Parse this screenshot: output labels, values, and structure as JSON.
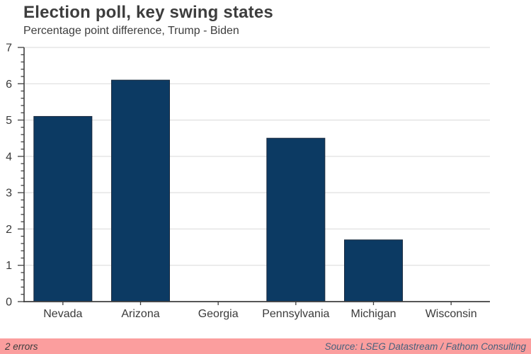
{
  "header": {
    "title": "Election poll, key swing states",
    "subtitle": "Percentage point difference, Trump - Biden"
  },
  "footer": {
    "errors_label": "2 errors",
    "source": "Source: LSEG Datastream / Fathom Consulting"
  },
  "colors": {
    "bar": "#0c3a63",
    "bar_border": "#1c2b3f",
    "grid": "#d9d9d9",
    "axis": "#3f3f3f",
    "text": "#3a3a3a",
    "footer_bg": "#fb9e9e",
    "footer_source_text": "#47617c",
    "footer_errors_text": "#3d3d3d"
  },
  "chart_data": {
    "type": "bar",
    "title": "Election poll, key swing states",
    "subtitle": "Percentage point difference, Trump - Biden",
    "categories": [
      "Nevada",
      "Arizona",
      "Georgia",
      "Pennsylvania",
      "Michigan",
      "Wisconsin"
    ],
    "values": [
      5.1,
      6.1,
      0,
      4.5,
      1.7,
      0
    ],
    "xlabel": "",
    "ylabel": "",
    "ylim": [
      0,
      7
    ],
    "yticks": [
      0,
      1,
      2,
      3,
      4,
      5,
      6,
      7
    ],
    "minor_tick_step": 0.2,
    "grid": true,
    "legend": false,
    "legend_position": "none"
  }
}
